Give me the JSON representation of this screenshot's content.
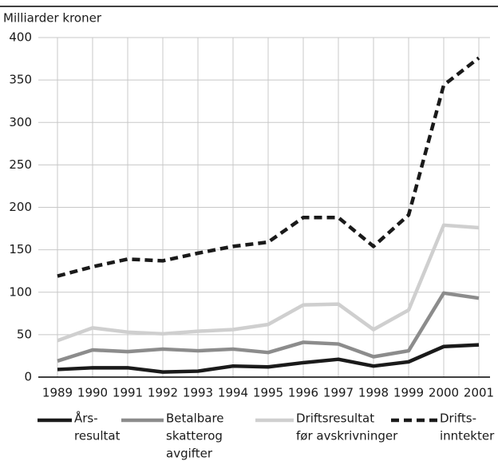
{
  "chart_data": {
    "type": "line",
    "ylabel": "Milliarder kroner",
    "categories": [
      "1989",
      "1990",
      "1991",
      "1992",
      "1993",
      "1994",
      "1995",
      "1996",
      "1997",
      "1998",
      "1999",
      "2000",
      "2001"
    ],
    "ylim": [
      0,
      400
    ],
    "yticks": [
      0,
      50,
      100,
      150,
      200,
      250,
      300,
      350,
      400
    ],
    "grid": true,
    "series": [
      {
        "name": [
          "Års-",
          "resultat"
        ],
        "color": "#1a1a1a",
        "dash": false,
        "values": [
          9,
          11,
          11,
          6,
          7,
          13,
          12,
          17,
          21,
          13,
          18,
          36,
          38
        ]
      },
      {
        "name": [
          "Betalbare",
          "skatterog",
          "avgifter"
        ],
        "color": "#8c8c8c",
        "dash": false,
        "values": [
          19,
          32,
          30,
          33,
          31,
          33,
          29,
          41,
          39,
          24,
          31,
          99,
          93
        ]
      },
      {
        "name": [
          "Driftsresultat",
          "før avskrivninger"
        ],
        "color": "#cfcfcf",
        "dash": false,
        "values": [
          43,
          58,
          53,
          51,
          54,
          56,
          62,
          85,
          86,
          56,
          79,
          179,
          176
        ]
      },
      {
        "name": [
          "Drifts-",
          "inntekter"
        ],
        "color": "#1a1a1a",
        "dash": true,
        "values": [
          119,
          130,
          139,
          137,
          146,
          154,
          159,
          188,
          188,
          154,
          191,
          344,
          376
        ]
      }
    ]
  }
}
